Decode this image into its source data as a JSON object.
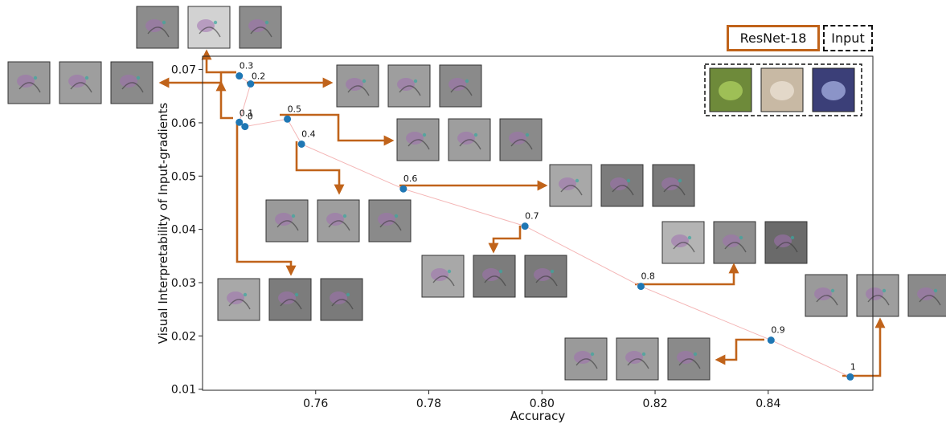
{
  "colors": {
    "point": "#1f77b4",
    "trend_line": "#f4b6b6",
    "arrow": "#c0631a",
    "axis": "#222222"
  },
  "legend": {
    "model_label": "ResNet-18",
    "input_label": "Input"
  },
  "chart_data": {
    "type": "scatter",
    "title": "",
    "xlabel": "Accuracy",
    "ylabel": "Visual Interpretability of Input-gradients",
    "xlim": [
      0.74,
      0.8585
    ],
    "ylim": [
      0.0098,
      0.0725
    ],
    "xticks": [
      0.76,
      0.78,
      0.8,
      0.82,
      0.84
    ],
    "xtick_labels": [
      "0.76",
      "0.78",
      "0.80",
      "0.82",
      "0.84"
    ],
    "yticks": [
      0.01,
      0.02,
      0.03,
      0.04,
      0.05,
      0.06,
      0.07
    ],
    "ytick_labels": [
      "0.01",
      "0.02",
      "0.03",
      "0.04",
      "0.05",
      "0.06",
      "0.07"
    ],
    "grid": false,
    "points": [
      {
        "label": "0",
        "x": 0.7475,
        "y": 0.0593
      },
      {
        "label": "0.1",
        "x": 0.7465,
        "y": 0.0601
      },
      {
        "label": "0.2",
        "x": 0.7485,
        "y": 0.0673
      },
      {
        "label": "0.3",
        "x": 0.7465,
        "y": 0.0688
      },
      {
        "label": "0.4",
        "x": 0.7575,
        "y": 0.056
      },
      {
        "label": "0.5",
        "x": 0.755,
        "y": 0.0607
      },
      {
        "label": "0.6",
        "x": 0.7755,
        "y": 0.0476
      },
      {
        "label": "0.7",
        "x": 0.797,
        "y": 0.0406
      },
      {
        "label": "0.8",
        "x": 0.8175,
        "y": 0.0293
      },
      {
        "label": "0.9",
        "x": 0.8405,
        "y": 0.0192
      },
      {
        "label": "1",
        "x": 0.8545,
        "y": 0.0123
      }
    ]
  }
}
